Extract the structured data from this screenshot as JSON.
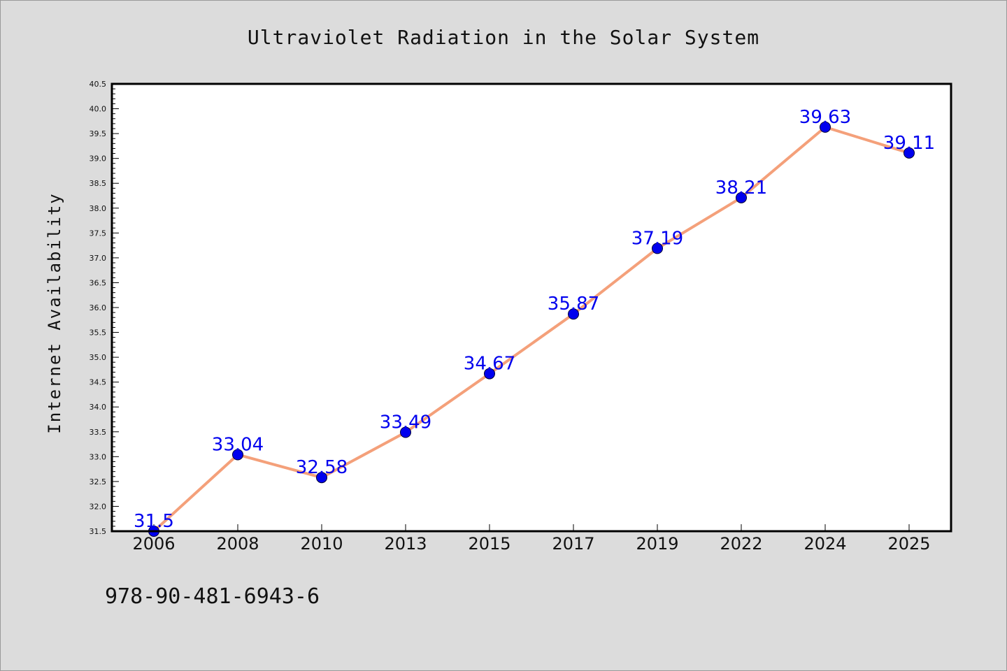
{
  "chart_data": {
    "type": "line",
    "title": "Ultraviolet Radiation in the Solar System",
    "xlabel": "",
    "ylabel": "Internet Availability",
    "categories": [
      "2006",
      "2008",
      "2010",
      "2013",
      "2015",
      "2017",
      "2019",
      "2022",
      "2024",
      "2025"
    ],
    "series": [
      {
        "values": [
          31.5,
          33.04,
          32.58,
          33.49,
          34.67,
          35.87,
          37.19,
          38.21,
          39.63,
          39.11
        ],
        "labels": [
          "31.5",
          "33.04",
          "32.58",
          "33.49",
          "34.67",
          "35.87",
          "37.19",
          "38.21",
          "39.63",
          "39.11"
        ],
        "line_color": "#f4a07a",
        "marker_color": "#0000ee"
      }
    ],
    "ylim": [
      31.5,
      40.5
    ],
    "yticks": [
      "31.5",
      "32.0",
      "32.5",
      "33.0",
      "33.5",
      "34.0",
      "34.5",
      "35.0",
      "35.5",
      "36.0",
      "36.5",
      "37.0",
      "37.5",
      "38.0",
      "38.5",
      "39.0",
      "39.5",
      "40.0",
      "40.5"
    ],
    "grid": false,
    "legend": "none",
    "background": "#dcdcdc",
    "plot_background": "#ffffff"
  },
  "footer_text": "978-90-481-6943-6"
}
